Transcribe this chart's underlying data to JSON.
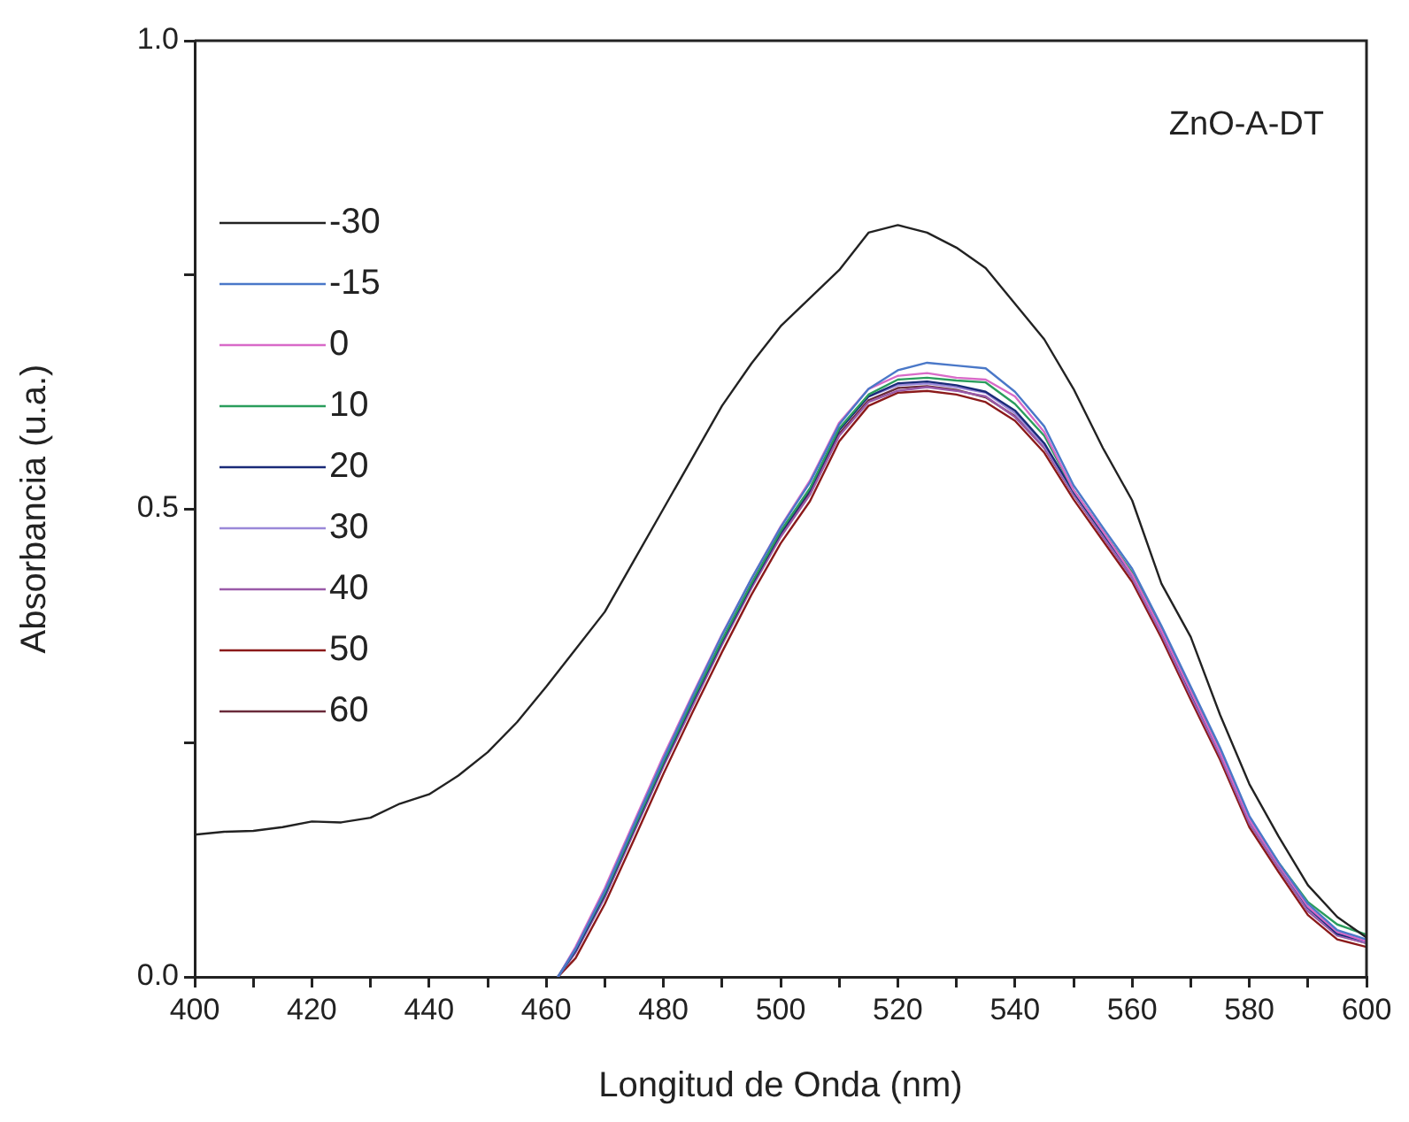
{
  "chart_data": {
    "type": "line",
    "xlabel": "Longitud de Onda (nm)",
    "ylabel": "Absorbancia (u.a.)",
    "annotations": [
      "ZnO-A-DT"
    ],
    "xlim": [
      400,
      600
    ],
    "ylim": [
      0,
      1
    ],
    "xticks": [
      400,
      {
        "value": 410,
        "label": null
      },
      420,
      {
        "value": 430,
        "label": null
      },
      440,
      {
        "value": 450,
        "label": null
      },
      460,
      {
        "value": 470,
        "label": null
      },
      480,
      {
        "value": 490,
        "label": null
      },
      500,
      {
        "value": 510,
        "label": null
      },
      520,
      {
        "value": 530,
        "label": null
      },
      540,
      {
        "value": 550,
        "label": null
      },
      560,
      {
        "value": 570,
        "label": null
      },
      580,
      {
        "value": 590,
        "label": null
      },
      600
    ],
    "yticks": [
      {
        "value": 0,
        "label": "0.0"
      },
      {
        "value": 0.25,
        "label": null
      },
      {
        "value": 0.5,
        "label": "0.5"
      },
      {
        "value": 0.75,
        "label": null
      },
      {
        "value": 1,
        "label": "1.0"
      }
    ],
    "grid": false,
    "legend": "top left",
    "marker": "none",
    "line_style": "solid",
    "series": [
      {
        "name": "-30",
        "color": "#222222",
        "x": [
          400,
          405,
          410,
          415,
          420,
          425,
          430,
          435,
          440,
          445,
          450,
          455,
          460,
          465,
          470,
          475,
          480,
          485,
          490,
          495,
          500,
          505,
          510,
          515,
          520,
          525,
          530,
          535,
          540,
          545,
          550,
          555,
          560,
          565,
          570,
          575,
          580,
          585,
          590,
          595,
          600
        ],
        "values": [
          0.152,
          0.155,
          0.156,
          0.16,
          0.166,
          0.165,
          0.17,
          0.185,
          0.195,
          0.215,
          0.24,
          0.272,
          0.31,
          0.35,
          0.39,
          0.445,
          0.5,
          0.555,
          0.61,
          0.655,
          0.695,
          0.725,
          0.755,
          0.795,
          0.803,
          0.795,
          0.779,
          0.757,
          0.719,
          0.681,
          0.628,
          0.565,
          0.509,
          0.42,
          0.363,
          0.28,
          0.206,
          0.15,
          0.098,
          0.064,
          0.042
        ]
      },
      {
        "name": "-15",
        "color": "#4a78c8",
        "x": [
          462,
          465,
          470,
          475,
          480,
          485,
          490,
          495,
          500,
          505,
          510,
          515,
          520,
          525,
          530,
          535,
          540,
          545,
          550,
          555,
          560,
          565,
          570,
          575,
          580,
          585,
          590,
          595,
          600
        ],
        "values": [
          0,
          0.03,
          0.092,
          0.163,
          0.233,
          0.3,
          0.365,
          0.425,
          0.48,
          0.528,
          0.59,
          0.628,
          0.648,
          0.656,
          0.653,
          0.65,
          0.625,
          0.588,
          0.525,
          0.48,
          0.436,
          0.375,
          0.31,
          0.245,
          0.172,
          0.122,
          0.078,
          0.05,
          0.04
        ]
      },
      {
        "name": "0",
        "color": "#d86ac8",
        "x": [
          462,
          465,
          470,
          475,
          480,
          485,
          490,
          495,
          500,
          505,
          510,
          515,
          520,
          525,
          530,
          535,
          540,
          545,
          550,
          555,
          560,
          565,
          570,
          575,
          580,
          585,
          590,
          595,
          600
        ],
        "values": [
          0,
          0.032,
          0.095,
          0.166,
          0.236,
          0.302,
          0.366,
          0.425,
          0.481,
          0.53,
          0.592,
          0.628,
          0.642,
          0.645,
          0.64,
          0.638,
          0.62,
          0.582,
          0.52,
          0.476,
          0.43,
          0.37,
          0.305,
          0.24,
          0.168,
          0.12,
          0.075,
          0.048,
          0.038
        ]
      },
      {
        "name": "10",
        "color": "#2a9d5c",
        "x": [
          462,
          465,
          470,
          475,
          480,
          485,
          490,
          495,
          500,
          505,
          510,
          515,
          520,
          525,
          530,
          535,
          540,
          545,
          550,
          555,
          560,
          565,
          570,
          575,
          580,
          585,
          590,
          595,
          600
        ],
        "values": [
          0,
          0.03,
          0.09,
          0.16,
          0.23,
          0.296,
          0.36,
          0.42,
          0.476,
          0.522,
          0.586,
          0.622,
          0.638,
          0.64,
          0.637,
          0.635,
          0.612,
          0.578,
          0.52,
          0.476,
          0.432,
          0.372,
          0.306,
          0.242,
          0.17,
          0.122,
          0.08,
          0.056,
          0.045
        ]
      },
      {
        "name": "20",
        "color": "#1a2a78",
        "x": [
          462,
          465,
          470,
          475,
          480,
          485,
          490,
          495,
          500,
          505,
          510,
          515,
          520,
          525,
          530,
          535,
          540,
          545,
          550,
          555,
          560,
          565,
          570,
          575,
          580,
          585,
          590,
          595,
          600
        ],
        "values": [
          0,
          0.028,
          0.088,
          0.158,
          0.228,
          0.294,
          0.358,
          0.418,
          0.474,
          0.52,
          0.584,
          0.62,
          0.634,
          0.636,
          0.632,
          0.625,
          0.605,
          0.57,
          0.518,
          0.474,
          0.43,
          0.37,
          0.304,
          0.24,
          0.168,
          0.12,
          0.074,
          0.046,
          0.038
        ]
      },
      {
        "name": "30",
        "color": "#9a88d8",
        "x": [
          462,
          465,
          470,
          475,
          480,
          485,
          490,
          495,
          500,
          505,
          510,
          515,
          520,
          525,
          530,
          535,
          540,
          545,
          550,
          555,
          560,
          565,
          570,
          575,
          580,
          585,
          590,
          595,
          600
        ],
        "values": [
          0,
          0.029,
          0.089,
          0.159,
          0.229,
          0.295,
          0.359,
          0.42,
          0.476,
          0.521,
          0.585,
          0.62,
          0.632,
          0.634,
          0.63,
          0.624,
          0.602,
          0.568,
          0.517,
          0.473,
          0.429,
          0.369,
          0.303,
          0.239,
          0.167,
          0.119,
          0.073,
          0.046,
          0.037
        ]
      },
      {
        "name": "40",
        "color": "#9a5aa8",
        "x": [
          462,
          465,
          470,
          475,
          480,
          485,
          490,
          495,
          500,
          505,
          510,
          515,
          520,
          525,
          530,
          535,
          540,
          545,
          550,
          555,
          560,
          565,
          570,
          575,
          580,
          585,
          590,
          595,
          600
        ],
        "values": [
          0,
          0.026,
          0.085,
          0.155,
          0.225,
          0.29,
          0.355,
          0.415,
          0.47,
          0.515,
          0.578,
          0.614,
          0.626,
          0.63,
          0.626,
          0.62,
          0.598,
          0.565,
          0.515,
          0.47,
          0.426,
          0.366,
          0.3,
          0.236,
          0.164,
          0.116,
          0.07,
          0.044,
          0.036
        ]
      },
      {
        "name": "50",
        "color": "#8b1a1a",
        "x": [
          462,
          465,
          470,
          475,
          480,
          485,
          490,
          495,
          500,
          505,
          510,
          515,
          520,
          525,
          530,
          535,
          540,
          545,
          550,
          555,
          560,
          565,
          570,
          575,
          580,
          585,
          590,
          595,
          600
        ],
        "values": [
          0,
          0.02,
          0.078,
          0.147,
          0.217,
          0.283,
          0.347,
          0.408,
          0.463,
          0.508,
          0.572,
          0.61,
          0.624,
          0.626,
          0.622,
          0.614,
          0.594,
          0.56,
          0.51,
          0.466,
          0.422,
          0.362,
          0.296,
          0.232,
          0.16,
          0.112,
          0.066,
          0.04,
          0.032
        ]
      },
      {
        "name": "60",
        "color": "#6a2a3a",
        "x": [
          462,
          465,
          470,
          475,
          480,
          485,
          490,
          495,
          500,
          505,
          510,
          515,
          520,
          525,
          530,
          535,
          540,
          545,
          550,
          555,
          560,
          565,
          570,
          575,
          580,
          585,
          590,
          595,
          600
        ],
        "values": [
          0,
          0.027,
          0.086,
          0.156,
          0.226,
          0.291,
          0.356,
          0.417,
          0.472,
          0.517,
          0.58,
          0.616,
          0.629,
          0.631,
          0.627,
          0.619,
          0.599,
          0.565,
          0.515,
          0.471,
          0.427,
          0.367,
          0.301,
          0.237,
          0.165,
          0.117,
          0.071,
          0.045,
          0.036
        ]
      }
    ]
  }
}
